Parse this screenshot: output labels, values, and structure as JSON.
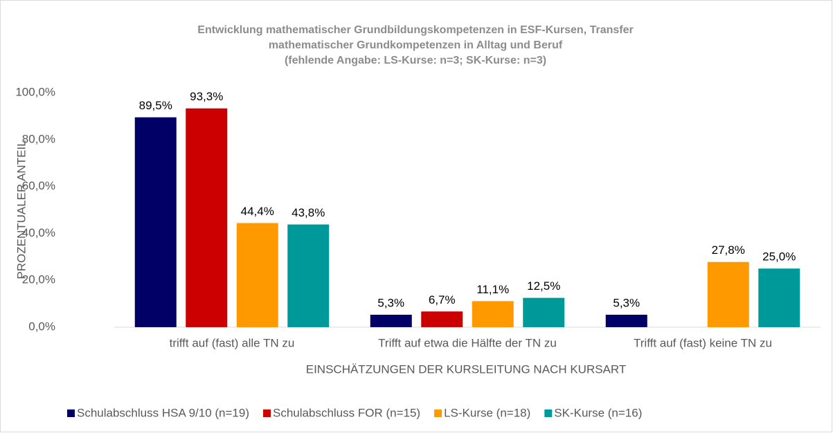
{
  "chart_data": {
    "type": "bar",
    "title": [
      "Entwicklung mathematischer Grundbildungskompetenzen in ESF-Kursen, Transfer",
      "mathematischer Grundkompetenzen in Alltag und Beruf",
      "(fehlende Angabe: LS-Kurse: n=3; SK-Kurse: n=3)"
    ],
    "x_label": "EINSCHÄTZUNGEN DER KURSLEITUNG NACH KURSART",
    "y_label": "PROZENTUALER ANTEIL",
    "categories": [
      "trifft auf (fast) alle TN zu",
      "Trifft auf etwa die Hälfte der TN zu",
      "Trifft auf (fast) keine TN zu"
    ],
    "series": [
      {
        "name": "Schulabschluss HSA 9/10 (n=19)",
        "color": "#000066",
        "values": [
          89.5,
          5.3,
          5.3
        ],
        "value_labels": [
          "89,5%",
          "5,3%",
          "5,3%"
        ]
      },
      {
        "name": "Schulabschluss FOR (n=15)",
        "color": "#cc0000",
        "values": [
          93.3,
          6.7,
          null
        ],
        "value_labels": [
          "93,3%",
          "6,7%",
          null
        ]
      },
      {
        "name": "LS-Kurse (n=18)",
        "color": "#ff9900",
        "values": [
          44.4,
          11.1,
          27.8
        ],
        "value_labels": [
          "44,4%",
          "11,1%",
          "27,8%"
        ]
      },
      {
        "name": "SK-Kurse (n=16)",
        "color": "#009999",
        "values": [
          43.8,
          12.5,
          25.0
        ],
        "value_labels": [
          "43,8%",
          "12,5%",
          "25,0%"
        ]
      }
    ],
    "ylim": [
      0,
      100
    ],
    "yticks": [
      {
        "value": 0,
        "label": "0,0%"
      },
      {
        "value": 20,
        "label": "20,0%"
      },
      {
        "value": 40,
        "label": "40,0%"
      },
      {
        "value": 60,
        "label": "60,0%"
      },
      {
        "value": 80,
        "label": "80,0%"
      },
      {
        "value": 100,
        "label": "100,0%"
      }
    ],
    "grid": false,
    "legend": "bottom"
  }
}
